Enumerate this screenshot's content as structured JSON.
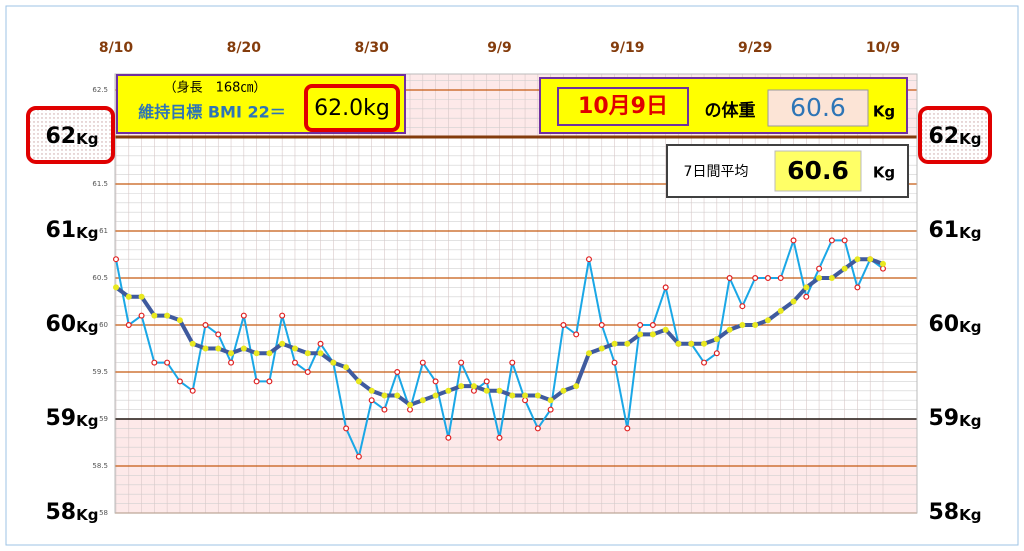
{
  "chart_data": {
    "type": "line",
    "categories": [
      "8/10",
      null,
      null,
      null,
      null,
      null,
      null,
      null,
      null,
      null,
      "8/20",
      null,
      null,
      null,
      null,
      null,
      null,
      null,
      null,
      null,
      "8/30",
      null,
      null,
      null,
      null,
      null,
      null,
      null,
      null,
      null,
      "9/9",
      null,
      null,
      null,
      null,
      null,
      null,
      null,
      null,
      null,
      "9/19",
      null,
      null,
      null,
      null,
      null,
      null,
      null,
      null,
      null,
      "9/29",
      null,
      null,
      null,
      null,
      null,
      null,
      null,
      null,
      null,
      "10/9"
    ],
    "series": [
      {
        "color": "#1aa7e6",
        "marker": "#e02020",
        "values": [
          60.7,
          60.0,
          60.1,
          59.6,
          59.6,
          59.4,
          59.3,
          60.0,
          59.9,
          59.6,
          60.1,
          59.4,
          59.4,
          60.1,
          59.6,
          59.5,
          59.8,
          59.6,
          58.9,
          58.6,
          59.2,
          59.1,
          59.5,
          59.1,
          59.6,
          59.4,
          58.8,
          59.6,
          59.3,
          59.4,
          58.8,
          59.6,
          59.2,
          58.9,
          59.1,
          60.0,
          59.9,
          60.7,
          60.0,
          59.6,
          58.9,
          60.0,
          60.0,
          60.4,
          59.8,
          59.8,
          59.6,
          59.7,
          60.5,
          60.2,
          60.5,
          60.5,
          60.5,
          60.9,
          60.3,
          60.6,
          60.9,
          60.9,
          60.4,
          60.7,
          60.6
        ]
      },
      {
        "color": "#3f5a9e",
        "marker": "#e8e820",
        "values": [
          60.4,
          60.3,
          60.3,
          60.1,
          60.1,
          60.05,
          59.8,
          59.75,
          59.75,
          59.7,
          59.75,
          59.7,
          59.7,
          59.8,
          59.75,
          59.7,
          59.7,
          59.6,
          59.55,
          59.4,
          59.3,
          59.25,
          59.25,
          59.15,
          59.2,
          59.25,
          59.3,
          59.35,
          59.35,
          59.3,
          59.3,
          59.25,
          59.25,
          59.25,
          59.2,
          59.3,
          59.35,
          59.7,
          59.75,
          59.8,
          59.8,
          59.9,
          59.9,
          59.95,
          59.8,
          59.8,
          59.8,
          59.85,
          59.95,
          60.0,
          60.0,
          60.05,
          60.15,
          60.25,
          60.4,
          60.5,
          60.5,
          60.6,
          60.7,
          60.7,
          60.65
        ]
      }
    ],
    "ylim": [
      58,
      62.67
    ],
    "yticks": [
      58,
      58.5,
      59,
      59.5,
      60,
      60.5,
      61,
      61.5,
      62,
      62.5
    ],
    "major_ticks": [
      58,
      59,
      60,
      61,
      62
    ],
    "band": [
      59,
      62
    ],
    "unit": "Kg",
    "height_label": "（身長　168㎝）",
    "bmi_label": "維持目標 BMI 22＝",
    "target": "62.0kg",
    "date": "10月9日",
    "weight_label": "の体重",
    "weight": 60.6,
    "avg_label": "7日間平均",
    "avg": 60.6
  }
}
